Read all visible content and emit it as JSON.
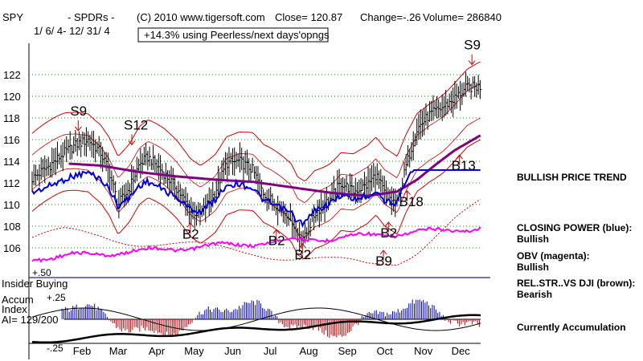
{
  "header": {
    "ticker": "SPY",
    "fund": "- SPDRs -",
    "copyright": "(C) 2010 www.tigersoft.com",
    "close": "Close= 120.87",
    "change": "Change=-.26",
    "volume": "Volume= 286840",
    "date_range": "1/ 6/ 4- 12/ 31/ 4",
    "performance": "+14.3% using Peerless/next days'opngs"
  },
  "panels": {
    "insider_label": "Insider Buying",
    "insider_level": "+.50",
    "accum_title": "Accum",
    "accum_index": "Index",
    "accum_ai": "AI= 129/200",
    "accum_top": "+.25",
    "accum_bottom": "-.25"
  },
  "side": {
    "trend": "BULLISH PRICE TREND",
    "cp_label": "CLOSING POWER (blue):",
    "cp_value": "Bullish",
    "obv_label": "OBV (magenta):",
    "obv_value": "Bullish",
    "rs_label": "REL.STR..VS DJI (brown):",
    "rs_value": "Bearish",
    "accum_status": "Currently Accumulation"
  },
  "colors": {
    "price_bars": "#000000",
    "bands": "#d40000",
    "moving_average": "#800080",
    "closing_power": "#0000e0",
    "obv": "#ff00ff",
    "insider_line": "#2020a0",
    "accum_positive": "#0000c0",
    "accum_negative": "#c00000",
    "grid": "#009000"
  },
  "chart_data": {
    "type": "line",
    "title": "SPY - SPDRs -",
    "y_ticks": [
      106,
      108,
      110,
      112,
      114,
      116,
      118,
      120,
      122
    ],
    "ylim": [
      104.6,
      123.5
    ],
    "x_ticks": [
      "Feb",
      "Mar",
      "Apr",
      "May",
      "Jun",
      "Jul",
      "Aug",
      "Sep",
      "Oct",
      "Nov",
      "Dec"
    ],
    "price_series": {
      "name": "SPY",
      "x": [
        "Jan 6",
        "Jan 20",
        "Feb 1",
        "Feb 10",
        "Feb 20",
        "Mar 1",
        "Mar 8",
        "Mar 15",
        "Mar 24",
        "Apr 1",
        "Apr 8",
        "Apr 20",
        "May 1",
        "May 12",
        "May 20",
        "Jun 1",
        "Jun 10",
        "Jun 20",
        "Jul 1",
        "Jul 10",
        "Jul 20",
        "Aug 1",
        "Aug 6",
        "Aug 12",
        "Aug 20",
        "Sep 1",
        "Sep 10",
        "Sep 20",
        "Oct 1",
        "Oct 8",
        "Oct 15",
        "Oct 25",
        "Nov 1",
        "Nov 10",
        "Nov 20",
        "Dec 1",
        "Dec 10",
        "Dec 20",
        "Dec 31"
      ],
      "values": [
        112.4,
        113.6,
        114.8,
        115.5,
        116.0,
        114.8,
        113.0,
        110.0,
        111.5,
        113.7,
        114.4,
        113.0,
        111.5,
        109.5,
        109.0,
        111.2,
        113.8,
        114.0,
        113.2,
        111.0,
        110.0,
        108.8,
        107.2,
        107.0,
        109.2,
        110.5,
        112.0,
        111.2,
        111.8,
        112.8,
        111.0,
        110.0,
        113.5,
        117.0,
        118.3,
        119.0,
        119.8,
        120.8,
        120.87
      ]
    },
    "moving_average": {
      "name": "moving average",
      "x": [
        "Jan 6",
        "Feb 1",
        "Mar 1",
        "Apr 1",
        "May 1",
        "Jun 1",
        "Jul 1",
        "Aug 1",
        "Sep 1",
        "Oct 1",
        "Oct 25",
        "Nov 10",
        "Nov 25",
        "Dec 10",
        "Dec 31"
      ],
      "values": [
        113.2,
        113.8,
        113.6,
        113.0,
        112.6,
        112.3,
        112.1,
        111.6,
        111.1,
        110.8,
        111.2,
        112.3,
        113.7,
        115.0,
        116.4
      ]
    },
    "signals": [
      {
        "label": "S9",
        "x": "Feb 12",
        "y": 116.6
      },
      {
        "label": "S12",
        "x": "Mar 26",
        "y": 115.3
      },
      {
        "label": "B2",
        "x": "May 12",
        "y": 108.5
      },
      {
        "label": "B2",
        "x": "Jul 20",
        "y": 107.9
      },
      {
        "label": "B2",
        "x": "Aug 10",
        "y": 106.6
      },
      {
        "label": "B2",
        "x": "Oct 18",
        "y": 108.6
      },
      {
        "label": "B9",
        "x": "Oct 14",
        "y": 106.0
      },
      {
        "label": "B18",
        "x": "Nov 2",
        "y": 111.5
      },
      {
        "label": "B13",
        "x": "Dec 14",
        "y": 114.8
      },
      {
        "label": "S9",
        "x": "Dec 24",
        "y": 122.7
      }
    ]
  }
}
